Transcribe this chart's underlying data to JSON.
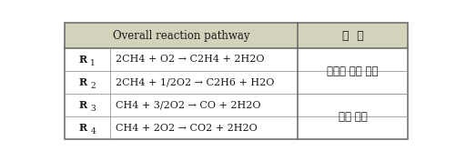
{
  "header_col1": "Overall reaction pathway",
  "header_col2": "비  고",
  "header_bg": "#d3d3bb",
  "rows": [
    {
      "label": "R",
      "label_sub": "1",
      "equation_parts": [
        {
          "text": "2CH",
          "style": "normal"
        },
        {
          "text": "4",
          "style": "sub"
        },
        {
          "text": " + O",
          "style": "normal"
        },
        {
          "text": "2",
          "style": "sub"
        },
        {
          "text": " → C",
          "style": "normal"
        },
        {
          "text": "2",
          "style": "sub_prefix"
        },
        {
          "text": "H",
          "style": "normal"
        },
        {
          "text": "4",
          "style": "sub"
        },
        {
          "text": " + 2H",
          "style": "normal"
        },
        {
          "text": "2",
          "style": "sub"
        },
        {
          "text": "O",
          "style": "normal"
        }
      ],
      "comment_row": "비균일 촉매 반응",
      "comment_group": 0
    },
    {
      "label": "R",
      "label_sub": "2",
      "equation_parts": [
        {
          "text": "2CH",
          "style": "normal"
        },
        {
          "text": "4",
          "style": "sub"
        },
        {
          "text": " + 1/2O",
          "style": "normal"
        },
        {
          "text": "2",
          "style": "sub"
        },
        {
          "text": " → C",
          "style": "normal"
        },
        {
          "text": "2",
          "style": "sub_prefix"
        },
        {
          "text": "H",
          "style": "normal"
        },
        {
          "text": "6",
          "style": "sub"
        },
        {
          "text": " + H",
          "style": "normal"
        },
        {
          "text": "2",
          "style": "sub"
        },
        {
          "text": "O",
          "style": "normal"
        }
      ],
      "comment_row": "",
      "comment_group": 0
    },
    {
      "label": "R",
      "label_sub": "3",
      "equation_parts": [
        {
          "text": "CH",
          "style": "normal"
        },
        {
          "text": "4",
          "style": "sub"
        },
        {
          "text": " + 3/2O",
          "style": "normal"
        },
        {
          "text": "2",
          "style": "sub"
        },
        {
          "text": " → CO + 2H",
          "style": "normal"
        },
        {
          "text": "2",
          "style": "sub"
        },
        {
          "text": "O",
          "style": "normal"
        }
      ],
      "comment_row": "기상 반응",
      "comment_group": 1
    },
    {
      "label": "R",
      "label_sub": "4",
      "equation_parts": [
        {
          "text": "CH",
          "style": "normal"
        },
        {
          "text": "4",
          "style": "sub"
        },
        {
          "text": " + 2O",
          "style": "normal"
        },
        {
          "text": "2",
          "style": "sub"
        },
        {
          "text": " → CO",
          "style": "normal"
        },
        {
          "text": "2",
          "style": "sub"
        },
        {
          "text": " + 2H",
          "style": "normal"
        },
        {
          "text": "2",
          "style": "sub"
        },
        {
          "text": "O",
          "style": "normal"
        }
      ],
      "comment_row": "",
      "comment_group": 1
    }
  ],
  "outer_border_color": "#666666",
  "inner_line_color": "#999999",
  "text_color": "#1a1a1a",
  "bg_white": "#ffffff",
  "font_size_header": 8.5,
  "font_size_body": 8.0,
  "font_size_comment": 8.5
}
